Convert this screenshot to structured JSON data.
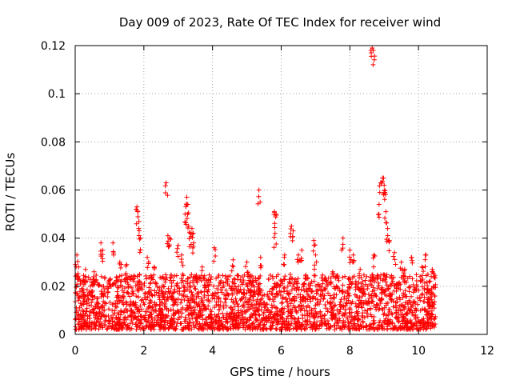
{
  "chart_data": {
    "type": "scatter",
    "title": "Day 009 of 2023, Rate Of TEC Index for receiver wind",
    "xlabel": "GPS time / hours",
    "ylabel": "ROTI / TECUs",
    "xlim": [
      0,
      12
    ],
    "ylim": [
      0,
      0.12
    ],
    "xticks": [
      0,
      2,
      4,
      6,
      8,
      10,
      12
    ],
    "xtick_labels": [
      "0",
      "2",
      "4",
      "6",
      "8",
      "10",
      "12"
    ],
    "yticks": [
      0,
      0.02,
      0.04,
      0.06,
      0.08,
      0.1,
      0.12
    ],
    "ytick_labels": [
      "0",
      "0.02",
      "0.04",
      "0.06",
      "0.08",
      "0.1",
      "0.12"
    ],
    "grid": true,
    "marker": "+",
    "color": "#ff0000",
    "series": [
      {
        "name": "ROTI",
        "bulk_range": {
          "x_start": 0,
          "x_end": 10.5,
          "y_min": 0.002,
          "y_max": 0.025
        },
        "points": [
          [
            0.05,
            0.033
          ],
          [
            0.1,
            0.028
          ],
          [
            0.3,
            0.027
          ],
          [
            0.55,
            0.026
          ],
          [
            0.75,
            0.038
          ],
          [
            0.8,
            0.035
          ],
          [
            1.1,
            0.038
          ],
          [
            1.3,
            0.03
          ],
          [
            1.5,
            0.029
          ],
          [
            1.8,
            0.053
          ],
          [
            1.82,
            0.051
          ],
          [
            1.85,
            0.044
          ],
          [
            1.9,
            0.04
          ],
          [
            2.1,
            0.032
          ],
          [
            2.3,
            0.028
          ],
          [
            2.65,
            0.063
          ],
          [
            2.7,
            0.041
          ],
          [
            2.75,
            0.04
          ],
          [
            3.0,
            0.037
          ],
          [
            3.1,
            0.033
          ],
          [
            3.2,
            0.05
          ],
          [
            3.25,
            0.057
          ],
          [
            3.28,
            0.054
          ],
          [
            3.3,
            0.045
          ],
          [
            3.35,
            0.042
          ],
          [
            3.4,
            0.044
          ],
          [
            3.45,
            0.038
          ],
          [
            3.7,
            0.028
          ],
          [
            4.05,
            0.036
          ],
          [
            4.6,
            0.031
          ],
          [
            5.0,
            0.03
          ],
          [
            5.35,
            0.06
          ],
          [
            5.4,
            0.032
          ],
          [
            5.8,
            0.051
          ],
          [
            5.85,
            0.05
          ],
          [
            5.82,
            0.042
          ],
          [
            6.1,
            0.033
          ],
          [
            6.3,
            0.045
          ],
          [
            6.35,
            0.043
          ],
          [
            6.5,
            0.033
          ],
          [
            6.6,
            0.035
          ],
          [
            6.95,
            0.039
          ],
          [
            7.0,
            0.033
          ],
          [
            7.5,
            0.026
          ],
          [
            7.8,
            0.04
          ],
          [
            8.0,
            0.035
          ],
          [
            8.1,
            0.033
          ],
          [
            8.3,
            0.027
          ],
          [
            8.65,
            0.119
          ],
          [
            8.68,
            0.118
          ],
          [
            8.7,
            0.033
          ],
          [
            8.85,
            0.054
          ],
          [
            8.9,
            0.063
          ],
          [
            8.95,
            0.065
          ],
          [
            9.0,
            0.062
          ],
          [
            9.02,
            0.059
          ],
          [
            9.05,
            0.051
          ],
          [
            9.1,
            0.044
          ],
          [
            9.15,
            0.039
          ],
          [
            9.3,
            0.034
          ],
          [
            9.5,
            0.03
          ],
          [
            9.6,
            0.027
          ],
          [
            9.8,
            0.032
          ],
          [
            10.1,
            0.028
          ],
          [
            10.2,
            0.033
          ],
          [
            10.4,
            0.027
          ],
          [
            10.45,
            0.024
          ]
        ]
      }
    ]
  }
}
